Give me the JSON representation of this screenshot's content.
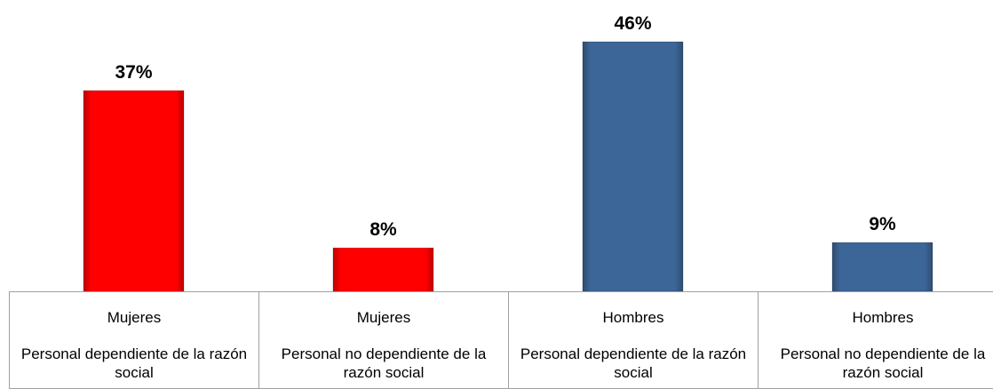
{
  "chart_data": {
    "type": "bar",
    "groups": [
      "Mujeres",
      "Mujeres",
      "Hombres",
      "Hombres"
    ],
    "categories": [
      "Personal dependiente de la razón social",
      "Personal no dependiente de la razón social",
      "Personal dependiente de la razón social",
      "Personal no dependiente de la razón social"
    ],
    "values": [
      37,
      8,
      46,
      9
    ],
    "value_labels": [
      "37%",
      "8%",
      "46%",
      "9%"
    ],
    "colors": [
      "#ff0000",
      "#ff0000",
      "#3d6698",
      "#3d6698"
    ]
  }
}
